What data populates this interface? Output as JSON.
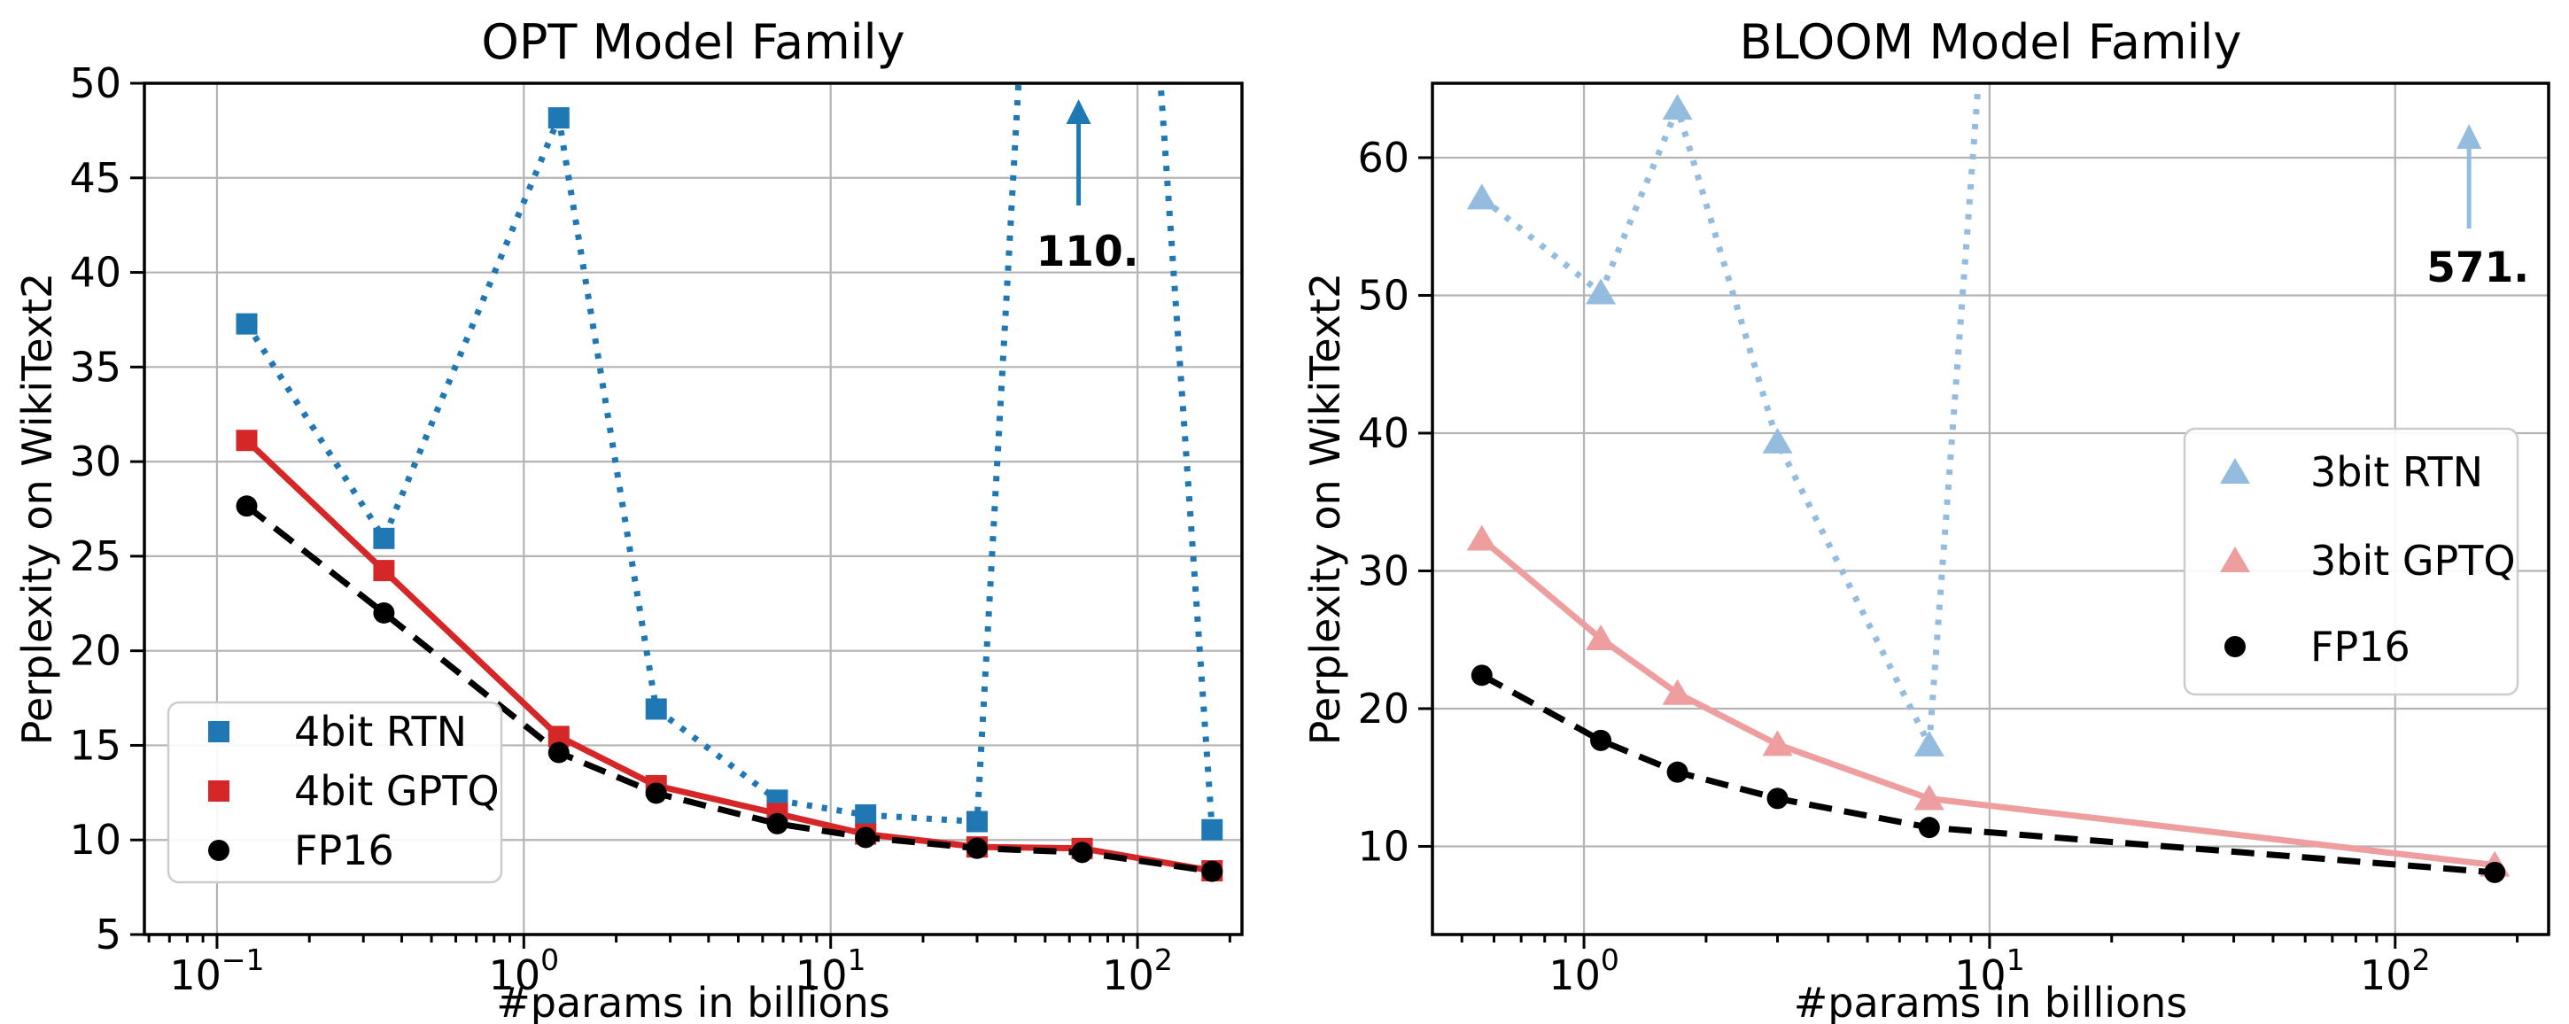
{
  "figure": {
    "background": "#ffffff",
    "grid_color": "#b4b4b4",
    "spine_color": "#000000"
  },
  "chart_data": {
    "type": "line",
    "subplots": [
      {
        "title": "OPT Model Family",
        "xlabel": "#params in billions",
        "ylabel": "Perplexity on WikiText2",
        "xscale": "log",
        "grid": true,
        "xlim": [
          0.058,
          219
        ],
        "ylim": [
          5,
          50
        ],
        "yticks": [
          5,
          10,
          15,
          20,
          25,
          30,
          35,
          40,
          45,
          50
        ],
        "xticks": [
          {
            "value": 0.1,
            "base": "10",
            "exp": "−1"
          },
          {
            "value": 1,
            "base": "10",
            "exp": "0"
          },
          {
            "value": 10,
            "base": "10",
            "exp": "1"
          },
          {
            "value": 100,
            "base": "10",
            "exp": "2"
          }
        ],
        "x": [
          0.125,
          0.35,
          1.3,
          2.7,
          6.7,
          13,
          30,
          66,
          175
        ],
        "series": [
          {
            "name": "4bit RTN",
            "color": "#1f77b4",
            "line_style": "dotted",
            "marker": "square",
            "values": [
              37.28,
              25.94,
              48.17,
              16.92,
              12.1,
              11.32,
              10.97,
              110.0,
              10.54
            ]
          },
          {
            "name": "4bit GPTQ",
            "color": "#d62728",
            "line_style": "solid",
            "marker": "square",
            "values": [
              31.12,
              24.24,
              15.47,
              12.87,
              11.39,
              10.31,
              9.63,
              9.55,
              8.37
            ]
          },
          {
            "name": "FP16",
            "color": "#000000",
            "line_style": "dashed",
            "marker": "circle",
            "values": [
              27.65,
              22.0,
              14.62,
              12.47,
              10.86,
              10.13,
              9.56,
              9.34,
              8.34
            ]
          }
        ],
        "legend": {
          "loc": "lower left",
          "items": [
            "4bit RTN",
            "4bit GPTQ",
            "FP16"
          ]
        },
        "annotation": {
          "text": "110.",
          "x": 66,
          "color": "#1f77b4"
        }
      },
      {
        "title": "BLOOM Model Family",
        "xlabel": "#params in billions",
        "ylabel": "Perplexity on WikiText2",
        "xscale": "log",
        "grid": true,
        "xlim": [
          0.423,
          239
        ],
        "ylim": [
          3.6,
          65.4
        ],
        "yticks": [
          10,
          20,
          30,
          40,
          50,
          60
        ],
        "xticks": [
          {
            "value": 1,
            "base": "10",
            "exp": "0"
          },
          {
            "value": 10,
            "base": "10",
            "exp": "1"
          },
          {
            "value": 100,
            "base": "10",
            "exp": "2"
          }
        ],
        "x": [
          0.56,
          1.1,
          1.7,
          3,
          7.1,
          176
        ],
        "series": [
          {
            "name": "3bit RTN",
            "color": "#94bcde",
            "line_style": "dotted",
            "marker": "triangle",
            "values": [
              57.08,
              50.19,
              63.59,
              39.36,
              17.37,
              571.0
            ]
          },
          {
            "name": "3bit GPTQ",
            "color": "#ee9e9e",
            "line_style": "solid",
            "marker": "triangle",
            "values": [
              32.31,
              25.08,
              21.11,
              17.4,
              13.47,
              8.64
            ]
          },
          {
            "name": "FP16",
            "color": "#000000",
            "line_style": "dashed",
            "marker": "circle",
            "values": [
              22.42,
              17.69,
              15.39,
              13.48,
              11.37,
              8.11
            ]
          }
        ],
        "legend": {
          "loc": "center right",
          "items": [
            "3bit RTN",
            "3bit GPTQ",
            "FP16"
          ]
        },
        "annotation": {
          "text": "571.",
          "x": 176,
          "color": "#94bcde"
        }
      }
    ]
  }
}
